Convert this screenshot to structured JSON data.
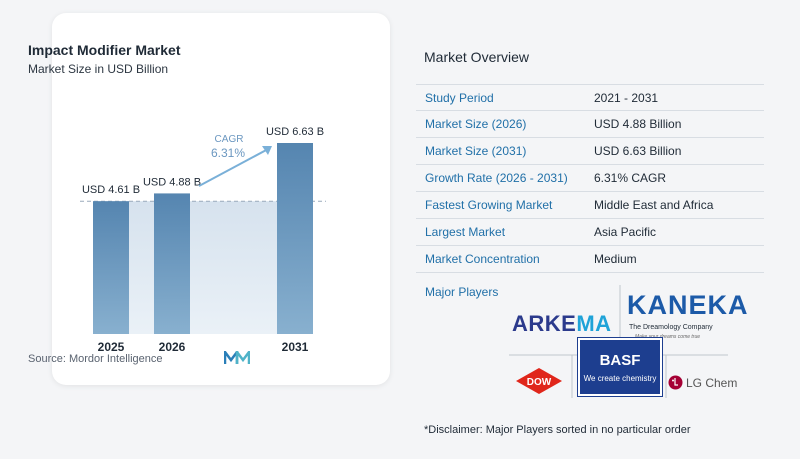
{
  "chart_data": {
    "type": "bar",
    "title": "Impact Modifier Market",
    "subtitle": "Market Size in USD Billion",
    "categories": [
      "2025",
      "2026",
      "2031"
    ],
    "values": [
      4.61,
      4.88,
      6.63
    ],
    "data_labels": [
      "USD 4.61 B",
      "USD 4.88 B",
      "USD 6.63 B"
    ],
    "annotation": {
      "label": "CAGR",
      "value": "6.31%"
    },
    "bar_color": "#5b8ab5",
    "xlabel": "",
    "ylabel": ""
  },
  "source": "Source:  Mordor Intelligence",
  "overview": {
    "title": "Market Overview",
    "rows": [
      {
        "label": "Study Period",
        "value": "2021 - 2031"
      },
      {
        "label": "Market Size (2026)",
        "value": "USD 4.88 Billion"
      },
      {
        "label": "Market Size (2031)",
        "value": "USD 6.63 Billion"
      },
      {
        "label": "Growth Rate (2026 - 2031)",
        "value": "6.31% CAGR"
      },
      {
        "label": "Fastest Growing Market",
        "value": "Middle East and Africa"
      },
      {
        "label": "Largest Market",
        "value": "Asia Pacific"
      },
      {
        "label": "Market Concentration",
        "value": "Medium"
      }
    ]
  },
  "players": {
    "title": "Major Players",
    "arkema": {
      "part1": "ARKE",
      "part2": "MA"
    },
    "kaneka": {
      "word": "KANEKA",
      "tagline": "The Dreamology Company",
      "subtag": "Make your dreams come true"
    },
    "dow": "DOW",
    "basf": {
      "word": "BASF",
      "tagline": "We create chemistry"
    },
    "lgchem": "LG Chem"
  },
  "disclaimer": "*Disclaimer: Major Players sorted in no particular order",
  "colors": {
    "accent": "#2170a8",
    "bar": "#5b8ab5",
    "band": "#dde7f0"
  }
}
